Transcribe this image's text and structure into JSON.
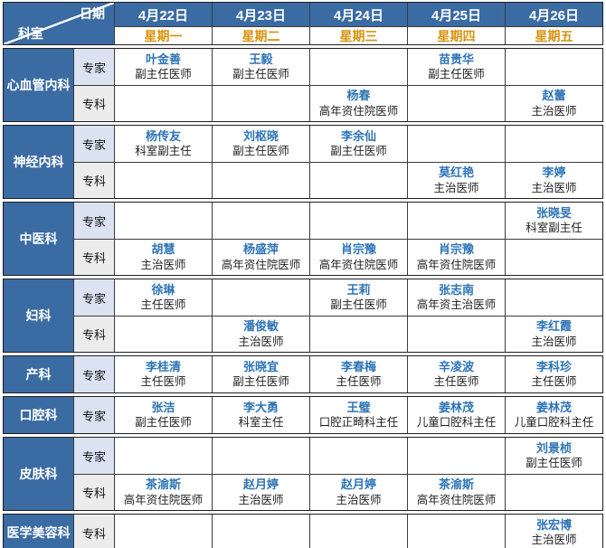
{
  "labels": {
    "expert": "专家",
    "specialist": "专科"
  },
  "header": {
    "corner_top": "日期",
    "corner_bottom": "科室",
    "columns": [
      {
        "date": "4月22日",
        "weekday": "星期一"
      },
      {
        "date": "4月23日",
        "weekday": "星期二"
      },
      {
        "date": "4月24日",
        "weekday": "星期三"
      },
      {
        "date": "4月25日",
        "weekday": "星期四"
      },
      {
        "date": "4月26日",
        "weekday": "星期五"
      }
    ]
  },
  "departments": [
    {
      "name": "心血管内科",
      "rows": [
        {
          "type": "专家",
          "cells": [
            {
              "name": "叶金善",
              "title": "副主任医师"
            },
            {
              "name": "王毅",
              "title": "副主任医师"
            },
            null,
            {
              "name": "苗贵华",
              "title": "副主任医师"
            },
            null
          ]
        },
        {
          "type": "专科",
          "cells": [
            null,
            null,
            {
              "name": "杨春",
              "title": "高年资住院医师"
            },
            null,
            {
              "name": "赵蕾",
              "title": "主治医师"
            }
          ]
        }
      ]
    },
    {
      "name": "神经内科",
      "rows": [
        {
          "type": "专家",
          "cells": [
            {
              "name": "杨传友",
              "title": "科室副主任"
            },
            {
              "name": "刘枢晓",
              "title": "副主任医师"
            },
            {
              "name": "李余仙",
              "title": "副主任医师"
            },
            null,
            null
          ]
        },
        {
          "type": "专科",
          "cells": [
            null,
            null,
            null,
            {
              "name": "莫红艳",
              "title": "主治医师"
            },
            {
              "name": "李婷",
              "title": "主治医师"
            }
          ]
        }
      ]
    },
    {
      "name": "中医科",
      "rows": [
        {
          "type": "专家",
          "cells": [
            null,
            null,
            null,
            null,
            {
              "name": "张晓旻",
              "title": "科室副主任"
            }
          ]
        },
        {
          "type": "专科",
          "cells": [
            {
              "name": "胡慧",
              "title": "主治医师"
            },
            {
              "name": "杨盛萍",
              "title": "高年资住院医师"
            },
            {
              "name": "肖宗豫",
              "title": "高年资住院医师"
            },
            {
              "name": "肖宗豫",
              "title": "高年资住院医师"
            },
            null
          ]
        }
      ]
    },
    {
      "name": "妇科",
      "rows": [
        {
          "type": "专家",
          "cells": [
            {
              "name": "徐琳",
              "title": "主任医师"
            },
            null,
            {
              "name": "王莉",
              "title": "副主任医师"
            },
            {
              "name": "张志南",
              "title": "高年资主治医师"
            },
            null
          ]
        },
        {
          "type": "专科",
          "cells": [
            null,
            {
              "name": "潘俊敏",
              "title": "主治医师"
            },
            null,
            null,
            {
              "name": "李红霞",
              "title": "主治医师"
            }
          ]
        }
      ]
    },
    {
      "name": "产科",
      "rows": [
        {
          "type": "专家",
          "cells": [
            {
              "name": "李桂清",
              "title": "主任医师"
            },
            {
              "name": "张晓宜",
              "title": "副主任医师"
            },
            {
              "name": "李春梅",
              "title": "主任医师"
            },
            {
              "name": "辛凌波",
              "title": "主任医师"
            },
            {
              "name": "李科珍",
              "title": "主任医师"
            }
          ]
        }
      ]
    },
    {
      "name": "口腔科",
      "rows": [
        {
          "type": "专家",
          "cells": [
            {
              "name": "张洁",
              "title": "副主任医师"
            },
            {
              "name": "李大勇",
              "title": "科室主任"
            },
            {
              "name": "王璧",
              "title": "口腔正畸科主任"
            },
            {
              "name": "姜林茂",
              "title": "儿童口腔科主任"
            },
            {
              "name": "姜林茂",
              "title": "儿童口腔科主任"
            }
          ]
        }
      ]
    },
    {
      "name": "皮肤科",
      "rows": [
        {
          "type": "专家",
          "cells": [
            null,
            null,
            null,
            null,
            {
              "name": "刘景桢",
              "title": "副主任医师"
            }
          ]
        },
        {
          "type": "专科",
          "cells": [
            {
              "name": "茶渝斯",
              "title": "高年资住院医师"
            },
            {
              "name": "赵月婷",
              "title": "主治医师"
            },
            {
              "name": "赵月婷",
              "title": "主治医师"
            },
            {
              "name": "茶渝斯",
              "title": "高年资住院医师"
            },
            null
          ]
        }
      ]
    },
    {
      "name": "医学美容科",
      "rows": [
        {
          "type": "专科",
          "cells": [
            null,
            null,
            null,
            null,
            {
              "name": "张宏博",
              "title": "主治医师"
            }
          ]
        }
      ]
    }
  ],
  "colors": {
    "header_blue": "#3a6ba3",
    "expert_bg": "#dbe3f2",
    "specialist_bg": "#ececec",
    "weekday_orange": "#d8920f",
    "doctor_name_blue": "#2e74b5"
  }
}
